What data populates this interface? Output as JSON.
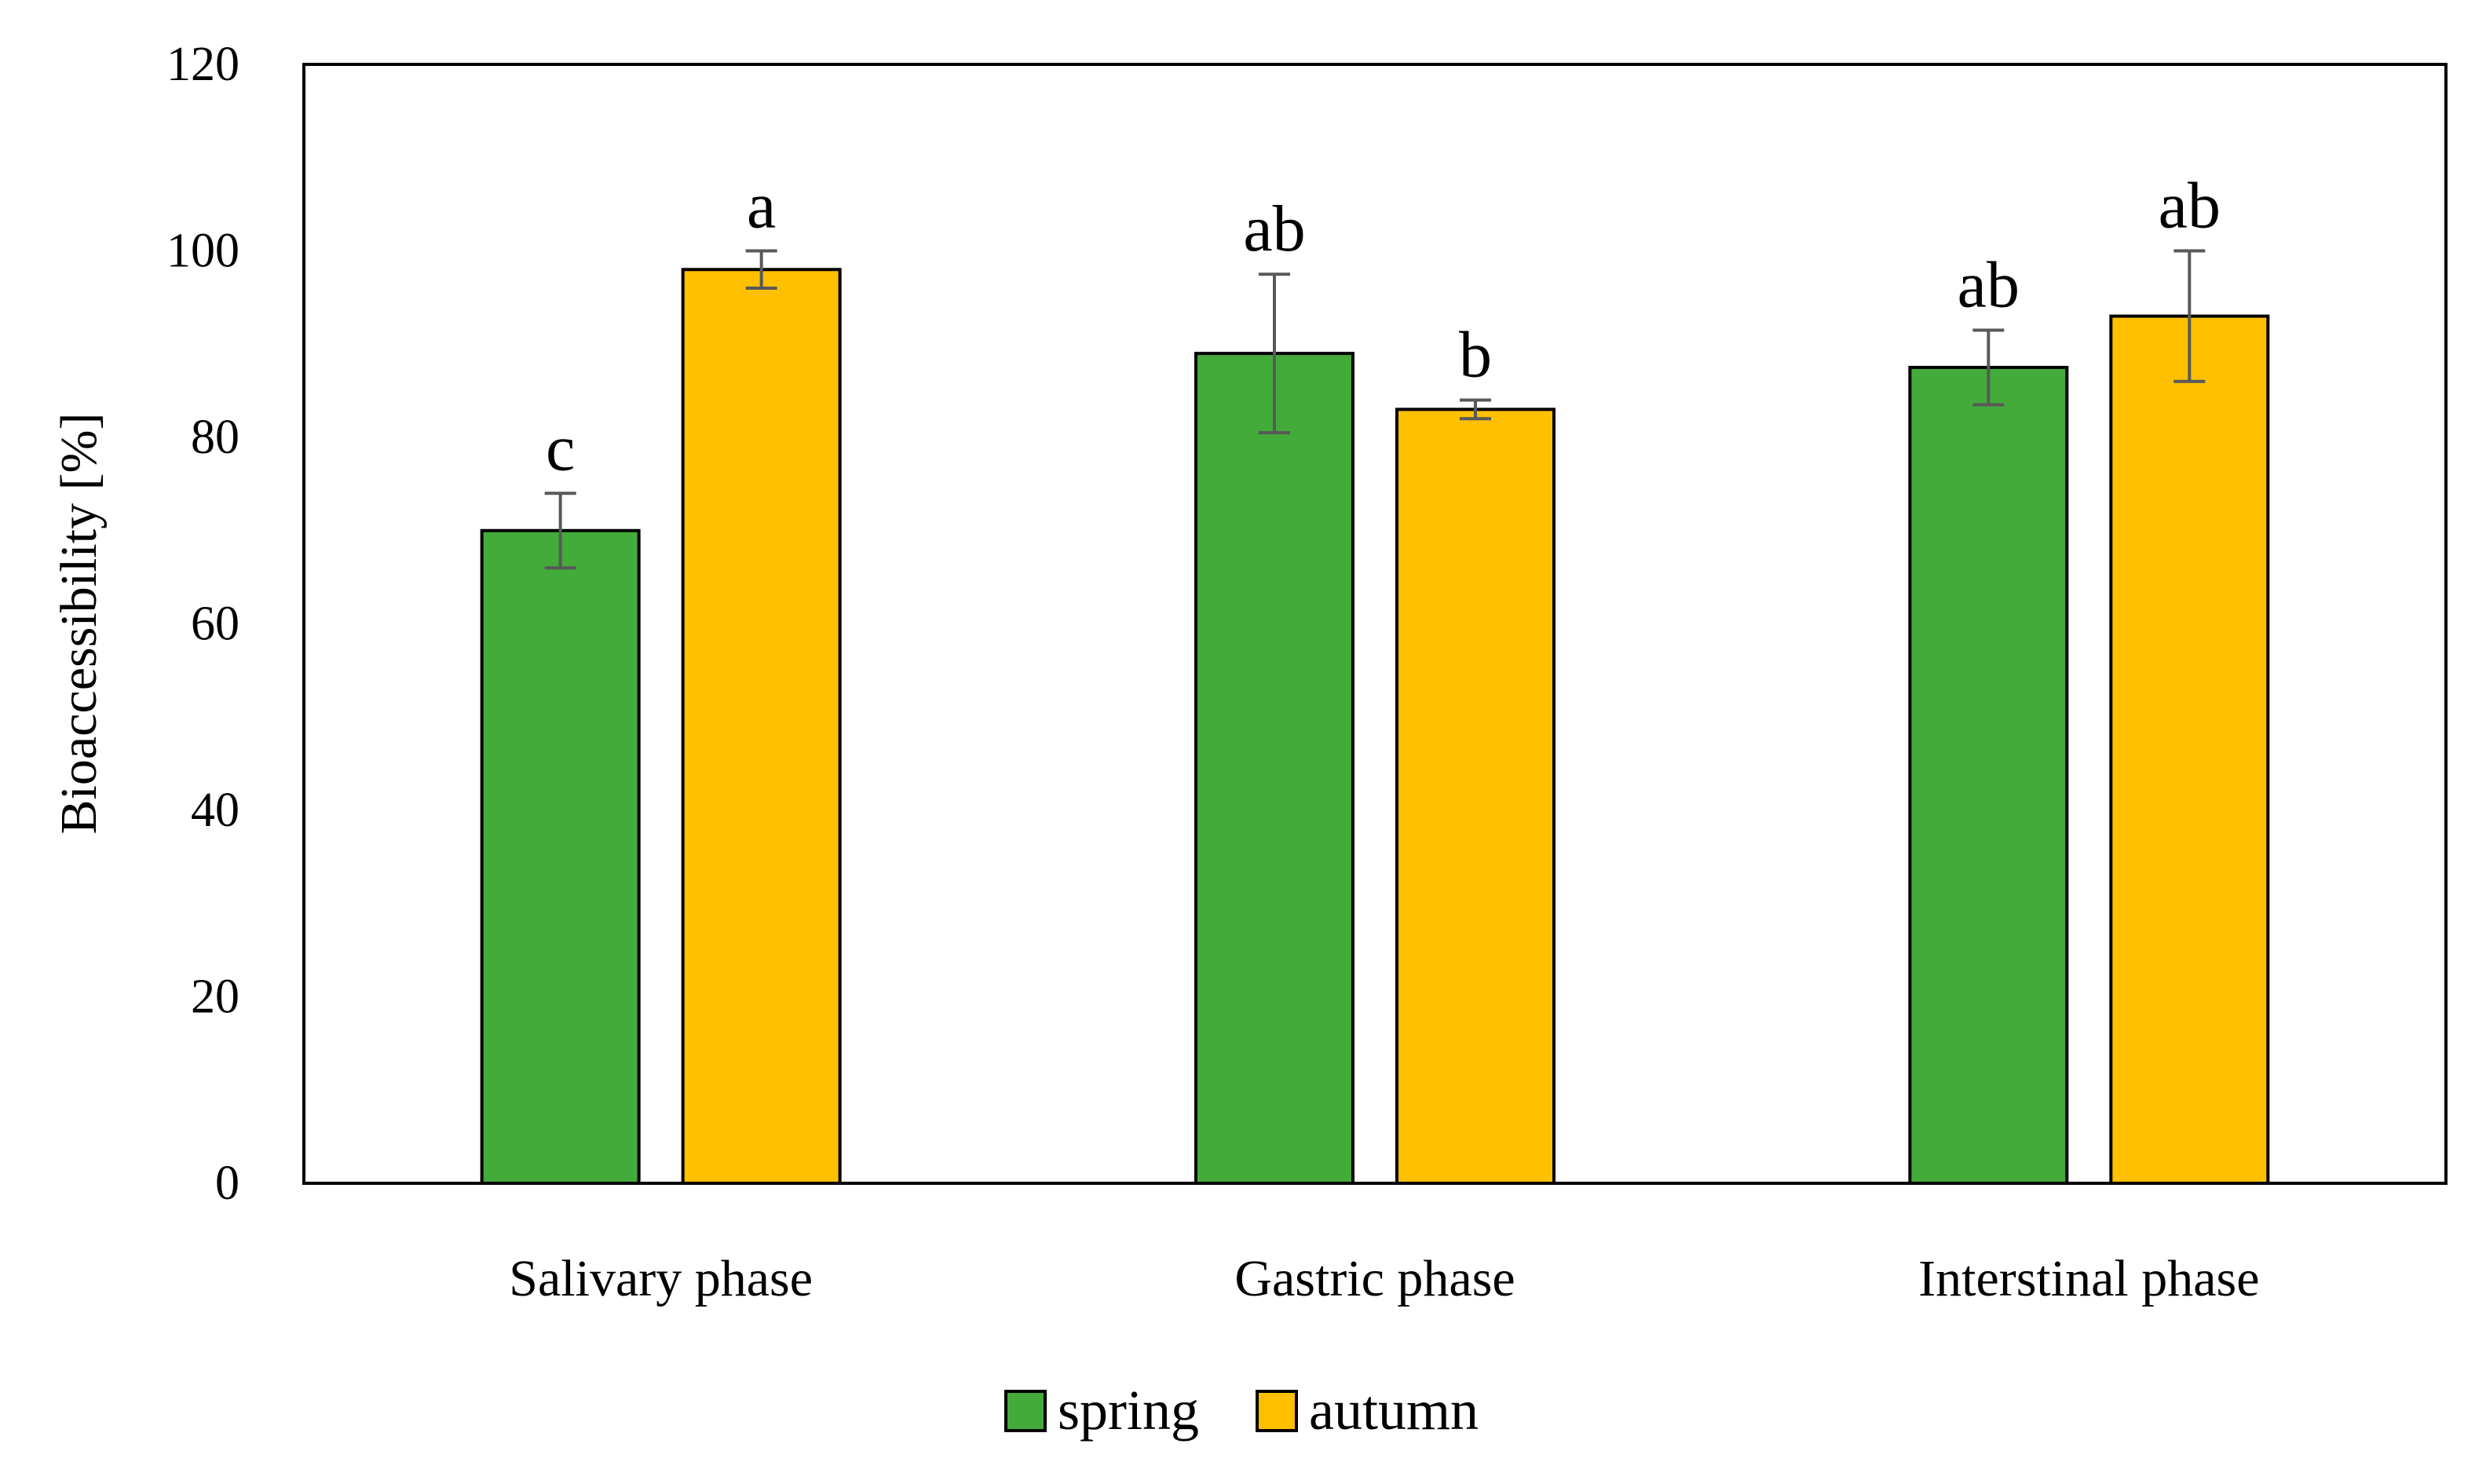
{
  "chart_data": {
    "type": "bar",
    "title": "",
    "xlabel": "",
    "ylabel": "Bioaccessibility [%]",
    "ylim": [
      0,
      120
    ],
    "yticks": [
      0,
      20,
      40,
      60,
      80,
      100,
      120
    ],
    "categories": [
      "Salivary phase",
      "Gastric phase",
      "Interstinal phase"
    ],
    "series": [
      {
        "name": "spring",
        "color": "#43ab3a",
        "values": [
          70,
          89,
          87.5
        ],
        "errors": [
          4,
          8.5,
          4
        ],
        "significance": [
          "c",
          "ab",
          "ab"
        ]
      },
      {
        "name": "autumn",
        "color": "#ffc000",
        "values": [
          98,
          83,
          93
        ],
        "errors": [
          2,
          1,
          7
        ],
        "significance": [
          "a",
          "b",
          "ab"
        ]
      }
    ],
    "grid": false,
    "legend_position": "bottom-center"
  }
}
